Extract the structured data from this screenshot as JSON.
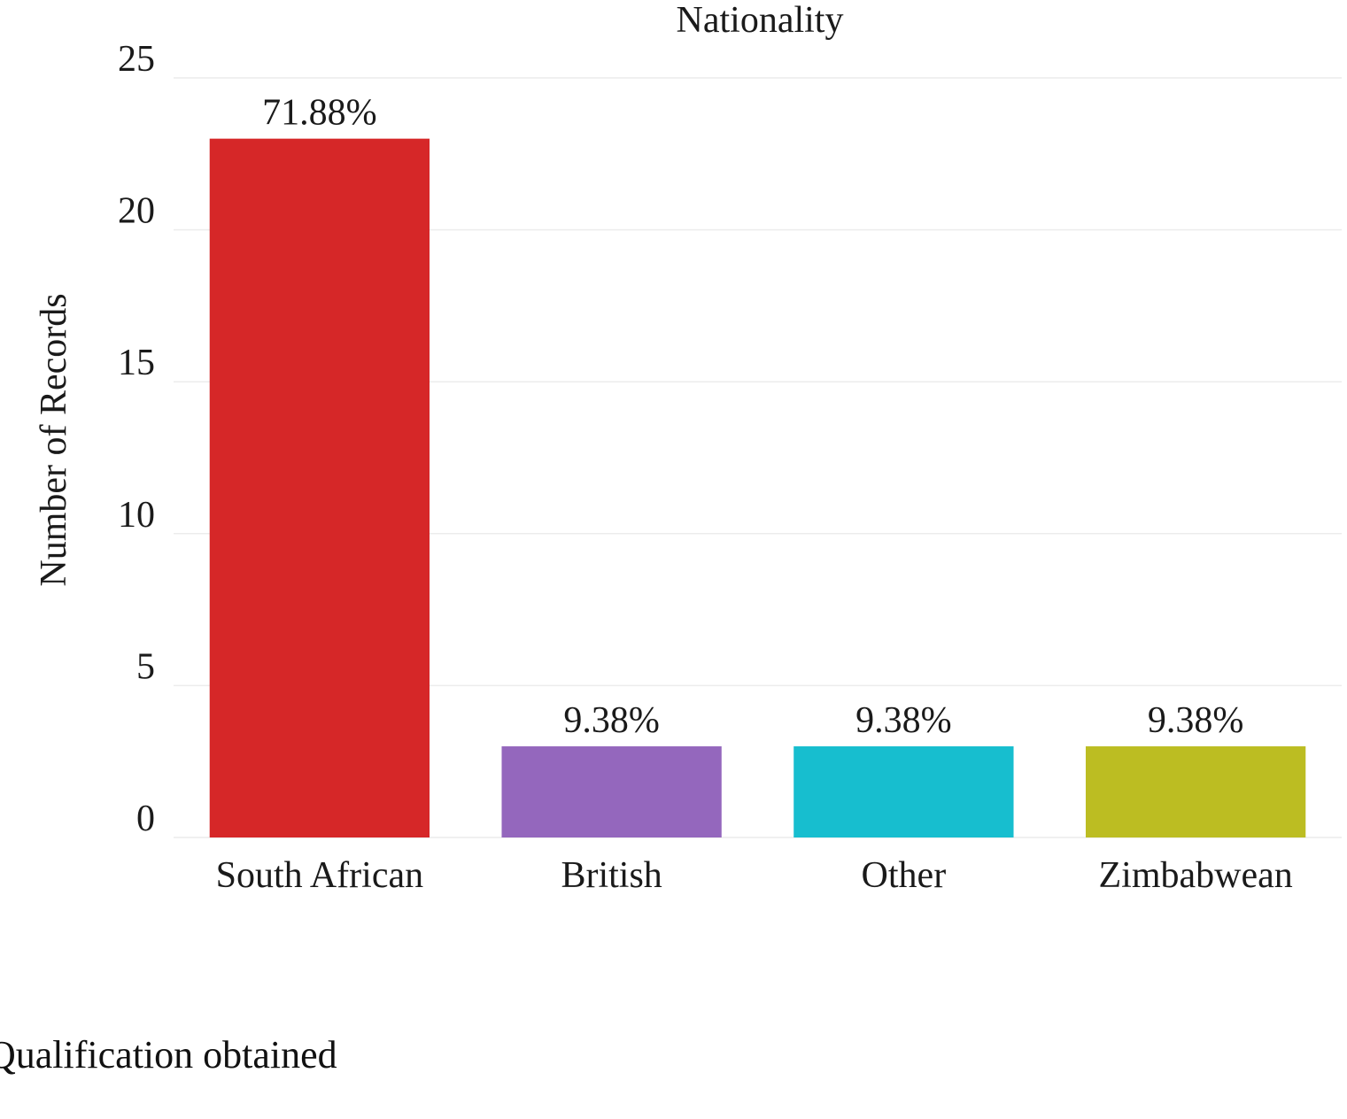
{
  "chart_data": {
    "type": "bar",
    "title": "Nationality",
    "xlabel": "",
    "ylabel": "Number of Records",
    "categories": [
      "South African",
      "British",
      "Other",
      "Zimbabwean"
    ],
    "values": [
      23,
      3,
      3,
      3
    ],
    "data_labels": [
      "71.88%",
      "9.38%",
      "9.38%",
      "9.38%"
    ],
    "colors": [
      "#d62728",
      "#9467bd",
      "#17becf",
      "#bcbd22"
    ],
    "ylim": [
      0,
      25
    ],
    "yticks": [
      0,
      5,
      10,
      15,
      20,
      25
    ],
    "grid": true,
    "legend": "none"
  },
  "caption": "Qualification obtained"
}
